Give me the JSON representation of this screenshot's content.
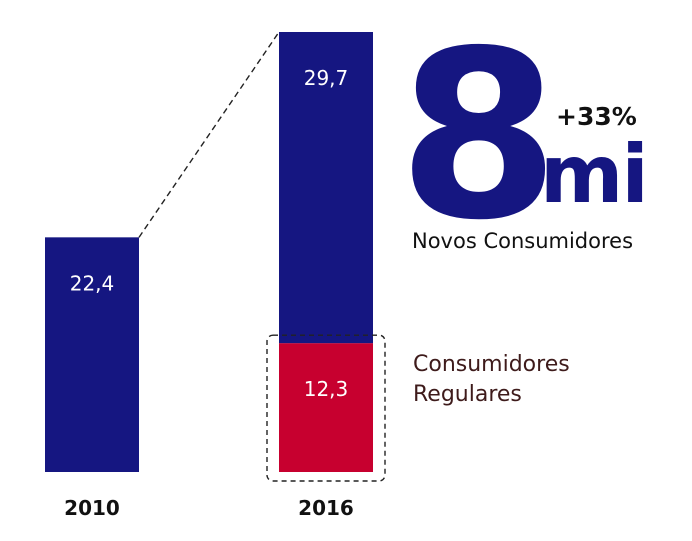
{
  "kpi": {
    "big_number": "8",
    "unit": "mi",
    "growth": "+33%",
    "label": "Novos Consumidores"
  },
  "legend": {
    "regular_label_line1": "Consumidores",
    "regular_label_line2": "Regulares"
  },
  "colors": {
    "navy": "#151681",
    "crimson": "#C7002F",
    "brown_text": "#3E1B1B",
    "black_text": "#111111",
    "bar_label": "#ffffff"
  },
  "chart_data": {
    "type": "bar",
    "stacked": true,
    "categories": [
      "2010",
      "2016"
    ],
    "series": [
      {
        "name": "Consumidores Regulares",
        "values": [
          null,
          12.3
        ],
        "color": "#C7002F"
      },
      {
        "values": [
          22.4,
          29.7
        ],
        "color": "#151681"
      }
    ],
    "data_labels": [
      {
        "category": "2010",
        "text": "22,4"
      },
      {
        "category": "2016",
        "text": "29,7"
      },
      {
        "category": "2016",
        "text": "12,3"
      }
    ],
    "title": "",
    "xlabel": "",
    "ylabel": "",
    "ylim": [
      0,
      42
    ],
    "grid": false
  }
}
